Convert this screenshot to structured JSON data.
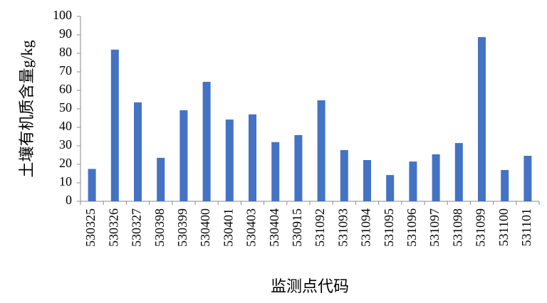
{
  "chart_data": {
    "type": "bar",
    "x_label": "监测点代码",
    "y_label": "土壤有机质含量g/kg",
    "categories": [
      "530325",
      "530326",
      "530327",
      "530398",
      "530399",
      "530400",
      "530401",
      "530403",
      "530404",
      "530915",
      "531092",
      "531093",
      "531094",
      "531095",
      "531096",
      "531097",
      "531098",
      "531099",
      "531100",
      "531101"
    ],
    "values": [
      17.5,
      82,
      53.5,
      23.5,
      49.2,
      64.6,
      44.2,
      47,
      32,
      35.8,
      54.6,
      27.7,
      22.3,
      14.2,
      21.5,
      25.4,
      31.5,
      88.8,
      16.9,
      24.6
    ],
    "color": "#4472c4",
    "ylim": [
      0,
      100
    ],
    "yticks": [
      0,
      10,
      20,
      30,
      40,
      50,
      60,
      70,
      80,
      90,
      100
    ],
    "grid": false
  }
}
